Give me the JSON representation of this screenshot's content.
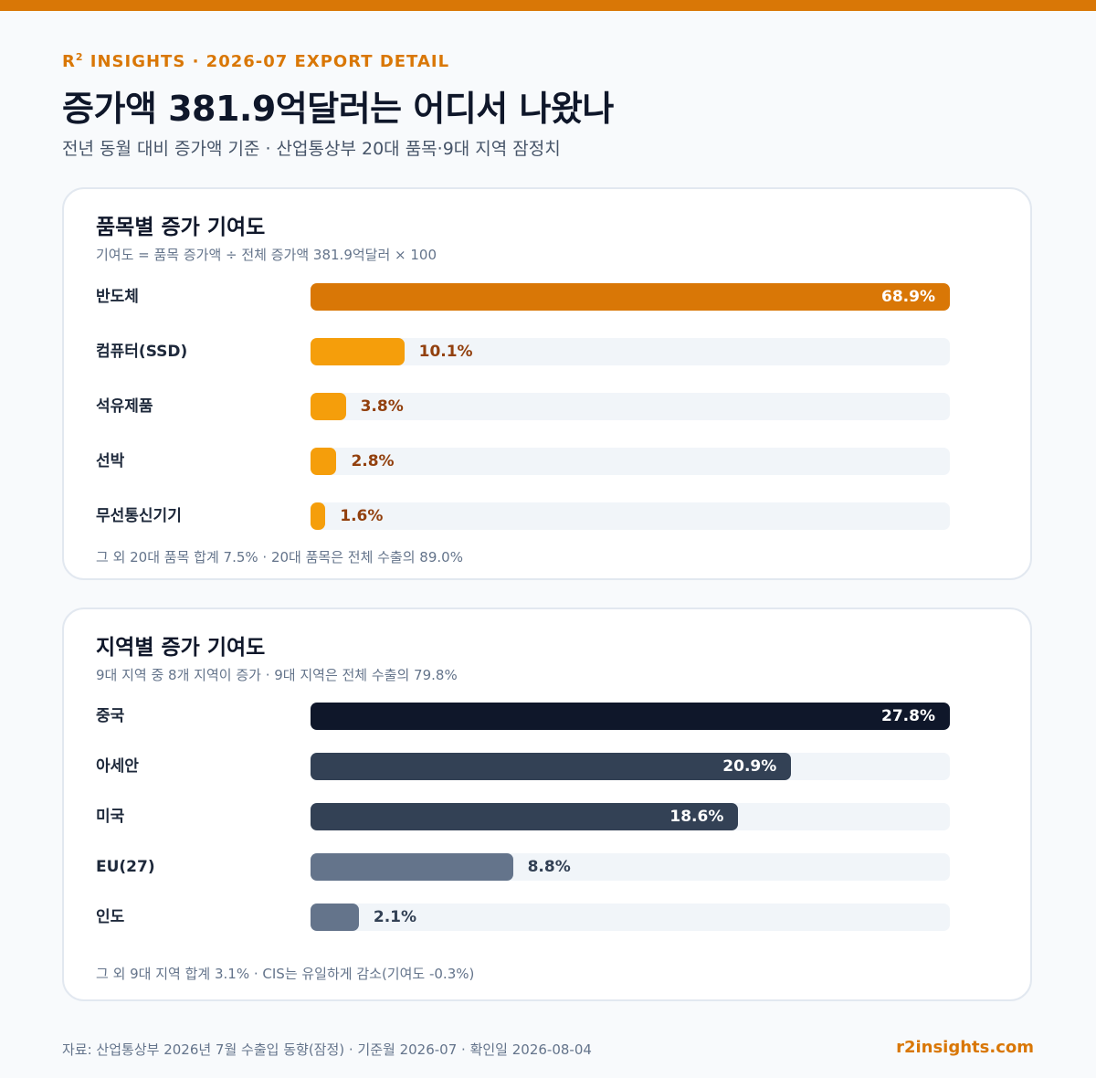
{
  "header": {
    "kicker_brand": "R",
    "kicker_sup": "2",
    "kicker_rest": " INSIGHTS · 2026-07 EXPORT DETAIL",
    "title": "증가액 381.9억달러는 어디서 나왔나",
    "subtitle": "전년 동월 대비 증가액 기준 · 산업통상부 20대 품목·9대 지역 잠정치"
  },
  "colors": {
    "accent": "#d97706",
    "item_bar": "#f59e0b",
    "item_value_text": "#92400e",
    "region_top": "#0f172a",
    "region_mid": "#334155",
    "region_low": "#64748b",
    "track": "#f1f5f9"
  },
  "chart_data": [
    {
      "type": "bar",
      "orientation": "horizontal",
      "title": "품목별 증가 기여도",
      "note": "기여도 = 품목 증가액 ÷ 전체 증가액 381.9억달러 × 100",
      "categories": [
        "반도체",
        "컴퓨터(SSD)",
        "석유제품",
        "선박",
        "무선통신기기"
      ],
      "values": [
        68.9,
        10.1,
        3.8,
        2.8,
        1.6
      ],
      "value_labels": [
        "68.9%",
        "10.1%",
        "3.8%",
        "2.8%",
        "1.6%"
      ],
      "scale_max": 68.9,
      "footnote": "그 외 20대 품목 합계 7.5% · 20대 품목은 전체 수출의 89.0%"
    },
    {
      "type": "bar",
      "orientation": "horizontal",
      "title": "지역별 증가 기여도",
      "note": "9대 지역 중 8개 지역이 증가 · 9대 지역은 전체 수출의 79.8%",
      "categories": [
        "중국",
        "아세안",
        "미국",
        "EU(27)",
        "인도"
      ],
      "values": [
        27.8,
        20.9,
        18.6,
        8.8,
        2.1
      ],
      "value_labels": [
        "27.8%",
        "20.9%",
        "18.6%",
        "8.8%",
        "2.1%"
      ],
      "scale_max": 27.8,
      "footnote": "그 외 9대 지역 합계 3.1% · CIS는 유일하게 감소(기여도 -0.3%)"
    }
  ],
  "footer": {
    "source": "자료: 산업통상부 2026년 7월 수출입 동향(잠정) · 기준월 2026-07 · 확인일 2026-08-04",
    "site": "r2insights.com"
  }
}
